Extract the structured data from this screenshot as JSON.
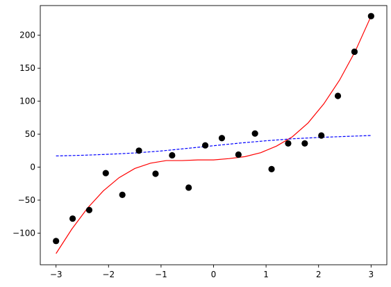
{
  "chart_data": {
    "type": "scatter",
    "xlim": [
      -3.3,
      3.3
    ],
    "ylim": [
      -148,
      245
    ],
    "xticks": [
      -3,
      -2,
      -1,
      0,
      1,
      2,
      3
    ],
    "yticks": [
      -100,
      -50,
      0,
      50,
      100,
      150,
      200
    ],
    "xtick_labels": [
      "−3",
      "−2",
      "−1",
      "0",
      "1",
      "2",
      "3"
    ],
    "ytick_labels": [
      "−100",
      "−50",
      "0",
      "50",
      "100",
      "150",
      "200"
    ],
    "grid": false,
    "legend": "none",
    "points": {
      "color": "#000000",
      "x": [
        -3.0,
        -2.684,
        -2.368,
        -2.053,
        -1.737,
        -1.421,
        -1.105,
        -0.789,
        -0.474,
        -0.158,
        0.158,
        0.474,
        0.789,
        1.105,
        1.421,
        1.737,
        2.053,
        2.368,
        2.684,
        3.0
      ],
      "y": [
        -112,
        -78,
        -65,
        -9,
        -42,
        25,
        -10,
        18,
        -31,
        33,
        44,
        19,
        51,
        -3,
        36,
        36,
        48,
        108,
        175,
        229
      ]
    },
    "curves": [
      {
        "style": "solid",
        "color": "#ff0000",
        "x": [
          -3.0,
          -2.7,
          -2.4,
          -2.1,
          -1.8,
          -1.5,
          -1.2,
          -0.9,
          -0.6,
          -0.3,
          0.0,
          0.3,
          0.6,
          0.9,
          1.2,
          1.5,
          1.8,
          2.1,
          2.4,
          2.7,
          3.0
        ],
        "y": [
          -131,
          -94,
          -62,
          -36,
          -16,
          -2,
          6,
          10,
          10,
          11,
          11,
          13,
          16,
          22,
          32,
          46,
          67,
          96,
          132,
          176,
          229
        ]
      },
      {
        "style": "dashed",
        "color": "#0000ff",
        "x": [
          -3.0,
          -2.5,
          -2.0,
          -1.5,
          -1.0,
          -0.5,
          0.0,
          0.5,
          1.0,
          1.5,
          2.0,
          2.5,
          3.0
        ],
        "y": [
          17,
          18,
          19.5,
          21.5,
          24.5,
          28.5,
          32.5,
          36.5,
          40,
          43,
          45,
          46.5,
          48
        ]
      }
    ]
  }
}
